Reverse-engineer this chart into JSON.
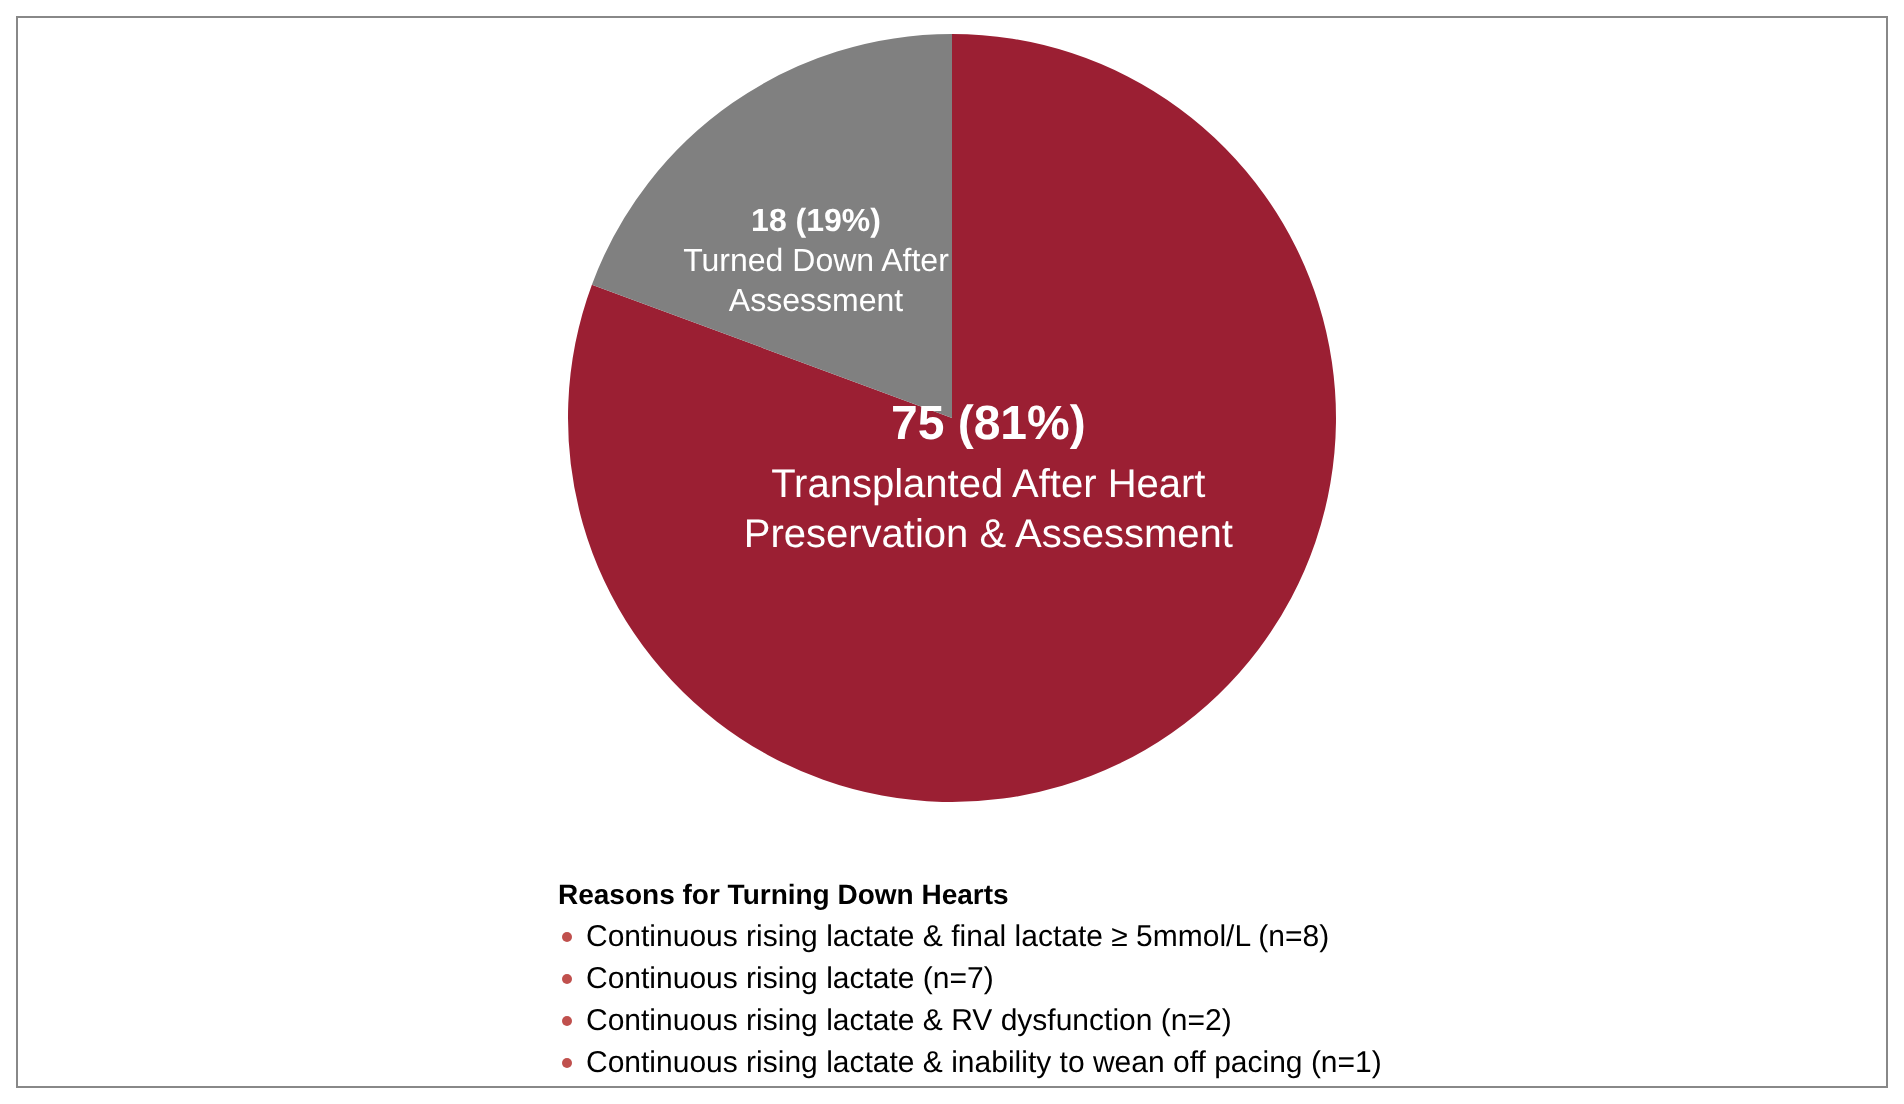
{
  "chart_data": {
    "type": "pie",
    "categories": [
      "Transplanted After Heart Preservation & Assessment",
      "Turned Down After Assessment"
    ],
    "values": [
      75,
      18
    ],
    "value_labels": [
      "75 (81%)",
      "18 (19%)"
    ],
    "colors": [
      "#9b1f33",
      "#808080"
    ],
    "legend": false,
    "annotations": [
      "Reasons for Turning Down Hearts",
      "Continuous rising lactate & final lactate ≥ 5mmol/L (n=8)",
      "Continuous rising lactate (n=7)",
      "Continuous rising lactate & RV dysfunction (n=2)",
      "Continuous rising lactate & inability to wean off pacing (n=1)"
    ]
  }
}
